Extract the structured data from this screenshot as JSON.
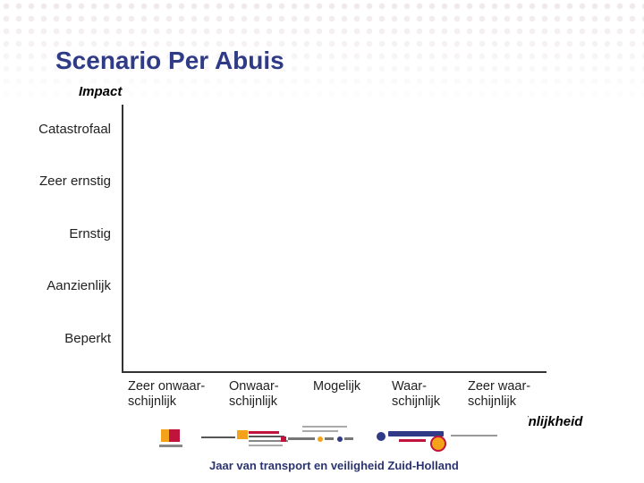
{
  "title": "Scenario Per Abuis",
  "y_axis_title": "Impact",
  "x_axis_title": "Waarschijnlijkheid",
  "y_levels": [
    "Catastrofaal",
    "Zeer ernstig",
    "Ernstig",
    "Aanzienlijk",
    "Beperkt"
  ],
  "x_levels": [
    {
      "line1": "Zeer onwaar-",
      "line2": "schijnlijk"
    },
    {
      "line1": "Onwaar-",
      "line2": "schijnlijk"
    },
    {
      "line1": "Mogelijk",
      "line2": ""
    },
    {
      "line1": "Waar-",
      "line2": "schijnlijk"
    },
    {
      "line1": "Zeer waar-",
      "line2": "schijnlijk"
    }
  ],
  "footer": {
    "caption": "Jaar van transport en veiligheid Zuid-Holland",
    "logos": [
      "veiligheidsregio-zuid-holland-zuid-logo",
      "partner-logo-shield",
      "partner-logo-1",
      "partner-logo-2",
      "partner-logo-3"
    ]
  },
  "colors": {
    "title": "#2f3b86",
    "accent_red": "#c0143c",
    "accent_orange": "#f3a21a"
  }
}
